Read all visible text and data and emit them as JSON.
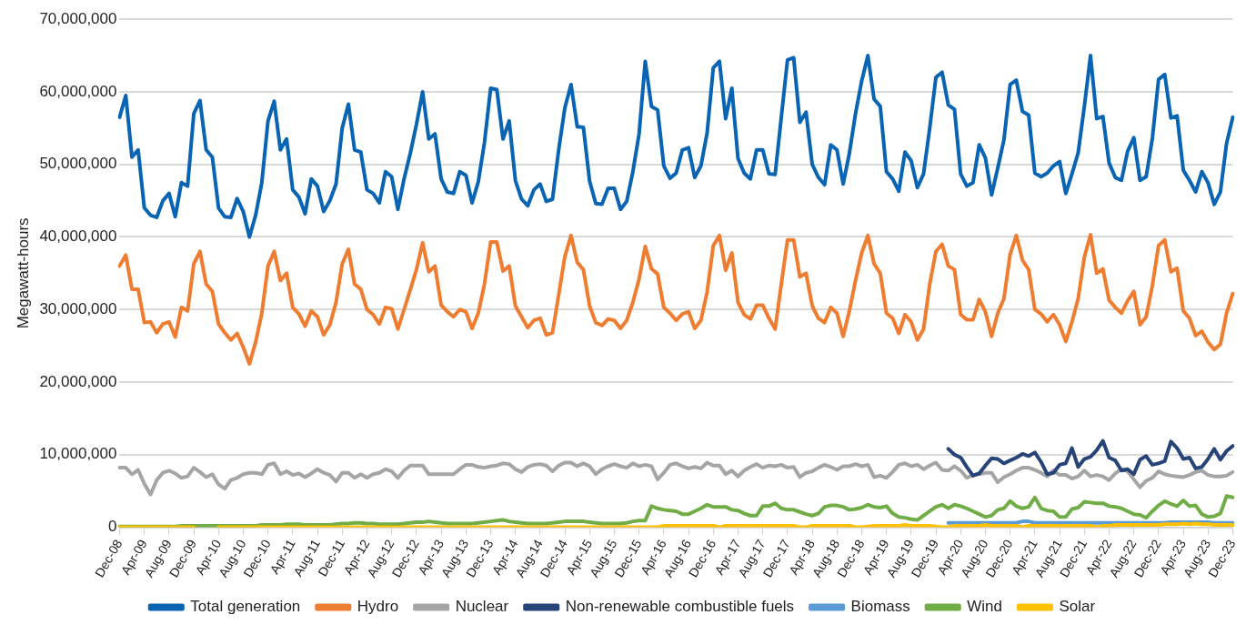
{
  "chart_data": {
    "type": "line",
    "ylabel": "Megawatt-hours",
    "categories": [
      "Dec-08",
      null,
      null,
      null,
      "Apr-09",
      null,
      null,
      null,
      "Aug-09",
      null,
      null,
      null,
      "Dec-09",
      null,
      null,
      null,
      "Apr-10",
      null,
      null,
      null,
      "Aug-10",
      null,
      null,
      null,
      "Dec-10",
      null,
      null,
      null,
      "Apr-11",
      null,
      null,
      null,
      "Aug-11",
      null,
      null,
      null,
      "Dec-11",
      null,
      null,
      null,
      "Apr-12",
      null,
      null,
      null,
      "Aug-12",
      null,
      null,
      null,
      "Dec-12",
      null,
      null,
      null,
      "Apr-13",
      null,
      null,
      null,
      "Aug-13",
      null,
      null,
      null,
      "Dec-13",
      null,
      null,
      null,
      "Apr-14",
      null,
      null,
      null,
      "Aug-14",
      null,
      null,
      null,
      "Dec-14",
      null,
      null,
      null,
      "Apr-15",
      null,
      null,
      null,
      "Aug-15",
      null,
      null,
      null,
      "Dec-15",
      null,
      null,
      null,
      "Apr-16",
      null,
      null,
      null,
      "Aug-16",
      null,
      null,
      null,
      "Dec-16",
      null,
      null,
      null,
      "Apr-17",
      null,
      null,
      null,
      "Aug-17",
      null,
      null,
      null,
      "Dec-17",
      null,
      null,
      null,
      "Apr-18",
      null,
      null,
      null,
      "Aug-18",
      null,
      null,
      null,
      "Dec-18",
      null,
      null,
      null,
      "Apr-19",
      null,
      null,
      null,
      "Aug-19",
      null,
      null,
      null,
      "Dec-19",
      null,
      null,
      null,
      "Apr-20",
      null,
      null,
      null,
      "Aug-20",
      null,
      null,
      null,
      "Dec-20",
      null,
      null,
      null,
      "Apr-21",
      null,
      null,
      null,
      "Aug-21",
      null,
      null,
      null,
      "Dec-21",
      null,
      null,
      null,
      "Apr-22",
      null,
      null,
      null,
      "Aug-22",
      null,
      null,
      null,
      "Dec-22",
      null,
      null,
      null,
      "Apr-23",
      null,
      null,
      null,
      "Aug-23",
      null,
      null,
      null,
      "Dec-23"
    ],
    "series": [
      {
        "name": "Total generation",
        "color": "#0a64b4",
        "values": [
          56500000.0,
          59500000.0,
          51000000.0,
          52000000.0,
          44000000.0,
          43000000.0,
          42700000.0,
          45000000.0,
          46000000.0,
          42800000.0,
          47500000.0,
          47000000.0,
          57000000.0,
          58800000.0,
          52000000.0,
          51000000.0,
          44000000.0,
          42800000.0,
          42700000.0,
          45300000.0,
          43500000.0,
          40000000.0,
          43000000.0,
          47500000.0,
          56000000.0,
          58700000.0,
          52000000.0,
          53500000.0,
          46500000.0,
          45500000.0,
          43200000.0,
          48000000.0,
          47000000.0,
          43500000.0,
          45000000.0,
          47300000.0,
          55000000.0,
          58300000.0,
          52000000.0,
          51700000.0,
          46500000.0,
          46000000.0,
          44700000.0,
          49000000.0,
          48300000.0,
          43800000.0,
          48000000.0,
          51500000.0,
          55500000.0,
          60000000.0,
          53500000.0,
          54200000.0,
          48000000.0,
          46200000.0,
          46000000.0,
          49000000.0,
          48500000.0,
          44700000.0,
          47600000.0,
          53000000.0,
          60500000.0,
          60300000.0,
          53500000.0,
          56000000.0,
          47800000.0,
          45200000.0,
          44300000.0,
          46500000.0,
          47300000.0,
          44900000.0,
          45200000.0,
          52000000.0,
          57800000.0,
          61000000.0,
          55200000.0,
          55100000.0,
          47700000.0,
          44600000.0,
          44500000.0,
          46700000.0,
          46700000.0,
          43800000.0,
          44900000.0,
          49000000.0,
          54200000.0,
          64200000.0,
          58000000.0,
          57500000.0,
          49800000.0,
          48100000.0,
          48800000.0,
          52000000.0,
          52300000.0,
          48200000.0,
          49800000.0,
          54300000.0,
          63300000.0,
          64200000.0,
          56300000.0,
          60500000.0,
          50800000.0,
          48800000.0,
          48000000.0,
          52000000.0,
          52000000.0,
          48700000.0,
          48600000.0,
          56500000.0,
          64400000.0,
          64700000.0,
          55800000.0,
          57200000.0,
          50000000.0,
          48200000.0,
          47200000.0,
          52700000.0,
          52000000.0,
          47300000.0,
          51500000.0,
          57000000.0,
          61500000.0,
          65000000.0,
          59000000.0,
          58000000.0,
          49000000.0,
          48000000.0,
          46300000.0,
          51700000.0,
          50500000.0,
          46800000.0,
          48700000.0,
          55000000.0,
          62000000.0,
          62700000.0,
          58200000.0,
          57600000.0,
          48700000.0,
          47000000.0,
          47500000.0,
          52700000.0,
          50900000.0,
          45800000.0,
          49500000.0,
          53400000.0,
          61000000.0,
          61600000.0,
          57300000.0,
          56800000.0,
          48800000.0,
          48300000.0,
          48800000.0,
          49800000.0,
          50400000.0,
          46000000.0,
          48700000.0,
          51600000.0,
          58000000.0,
          65000000.0,
          56300000.0,
          56600000.0,
          50200000.0,
          48200000.0,
          47800000.0,
          51800000.0,
          53700000.0,
          47800000.0,
          48300000.0,
          53600000.0,
          61700000.0,
          62400000.0,
          56400000.0,
          56700000.0,
          49200000.0,
          47800000.0,
          46200000.0,
          49000000.0,
          47500000.0,
          44500000.0,
          46200000.0,
          52900000.0,
          56500000.0
        ]
      },
      {
        "name": "Hydro",
        "color": "#ef7d31",
        "values": [
          36000000.0,
          37500000.0,
          32800000.0,
          32800000.0,
          28200000.0,
          28300000.0,
          26800000.0,
          28000000.0,
          28300000.0,
          26200000.0,
          30300000.0,
          29800000.0,
          36300000.0,
          38000000.0,
          33500000.0,
          32500000.0,
          28000000.0,
          26800000.0,
          25800000.0,
          26700000.0,
          24800000.0,
          22500000.0,
          25500000.0,
          29500000.0,
          36000000.0,
          38000000.0,
          34000000.0,
          35000000.0,
          30300000.0,
          29400000.0,
          27700000.0,
          29800000.0,
          29000000.0,
          26500000.0,
          27900000.0,
          31000000.0,
          36300000.0,
          38300000.0,
          33500000.0,
          32800000.0,
          30000000.0,
          29300000.0,
          28000000.0,
          30300000.0,
          30100000.0,
          27300000.0,
          30000000.0,
          32700000.0,
          35500000.0,
          39200000.0,
          35200000.0,
          36000000.0,
          30600000.0,
          29700000.0,
          29000000.0,
          30000000.0,
          29700000.0,
          27400000.0,
          29500000.0,
          33500000.0,
          39300000.0,
          39300000.0,
          35300000.0,
          36000000.0,
          30500000.0,
          29000000.0,
          27500000.0,
          28500000.0,
          28800000.0,
          26500000.0,
          26800000.0,
          32000000.0,
          37300000.0,
          40200000.0,
          36500000.0,
          35500000.0,
          30500000.0,
          28200000.0,
          27800000.0,
          28700000.0,
          28500000.0,
          27400000.0,
          28500000.0,
          31000000.0,
          34200000.0,
          38700000.0,
          35600000.0,
          34900000.0,
          30300000.0,
          29500000.0,
          28500000.0,
          29400000.0,
          29700000.0,
          27400000.0,
          28500000.0,
          32400000.0,
          38800000.0,
          40200000.0,
          35400000.0,
          37800000.0,
          31000000.0,
          29300000.0,
          28700000.0,
          30600000.0,
          30600000.0,
          28800000.0,
          27300000.0,
          33500000.0,
          39600000.0,
          39600000.0,
          34500000.0,
          35000000.0,
          30500000.0,
          28800000.0,
          28200000.0,
          30300000.0,
          29500000.0,
          26300000.0,
          29800000.0,
          34000000.0,
          37800000.0,
          40200000.0,
          36300000.0,
          35000000.0,
          29500000.0,
          28800000.0,
          26700000.0,
          29300000.0,
          28300000.0,
          25800000.0,
          27300000.0,
          33500000.0,
          38000000.0,
          39000000.0,
          36000000.0,
          35500000.0,
          29300000.0,
          28600000.0,
          28600000.0,
          31400000.0,
          29700000.0,
          26300000.0,
          29500000.0,
          31500000.0,
          37600000.0,
          40200000.0,
          36800000.0,
          35500000.0,
          30000000.0,
          29400000.0,
          28300000.0,
          29300000.0,
          27900000.0,
          25600000.0,
          28300000.0,
          31500000.0,
          37200000.0,
          40300000.0,
          35000000.0,
          35600000.0,
          31300000.0,
          30300000.0,
          29500000.0,
          31200000.0,
          32500000.0,
          27900000.0,
          29000000.0,
          33300000.0,
          38800000.0,
          39600000.0,
          35200000.0,
          35700000.0,
          29800000.0,
          28800000.0,
          26400000.0,
          27000000.0,
          25500000.0,
          24500000.0,
          25200000.0,
          29500000.0,
          32200000.0
        ]
      },
      {
        "name": "Nuclear",
        "color": "#a5a5a5",
        "values": [
          8200000.0,
          8200000.0,
          7300000.0,
          7900000.0,
          6000000.0,
          4500000.0,
          6500000.0,
          7500000.0,
          7800000.0,
          7400000.0,
          6800000.0,
          7000000.0,
          8200000.0,
          7600000.0,
          6900000.0,
          7300000.0,
          5900000.0,
          5300000.0,
          6500000.0,
          6800000.0,
          7300000.0,
          7500000.0,
          7500000.0,
          7300000.0,
          8600000.0,
          8800000.0,
          7300000.0,
          7700000.0,
          7200000.0,
          7400000.0,
          6900000.0,
          7400000.0,
          8000000.0,
          7500000.0,
          7200000.0,
          6300000.0,
          7500000.0,
          7500000.0,
          6800000.0,
          7300000.0,
          6800000.0,
          7300000.0,
          7500000.0,
          8000000.0,
          7700000.0,
          6800000.0,
          7800000.0,
          8500000.0,
          8500000.0,
          8500000.0,
          7300000.0,
          7300000.0,
          7300000.0,
          7300000.0,
          7300000.0,
          8000000.0,
          8600000.0,
          8600000.0,
          8300000.0,
          8200000.0,
          8400000.0,
          8500000.0,
          8800000.0,
          8700000.0,
          8000000.0,
          7600000.0,
          8300000.0,
          8600000.0,
          8700000.0,
          8500000.0,
          7700000.0,
          8500000.0,
          8900000.0,
          8900000.0,
          8400000.0,
          8800000.0,
          8400000.0,
          7300000.0,
          8000000.0,
          8400000.0,
          8700000.0,
          8400000.0,
          8200000.0,
          8800000.0,
          8400000.0,
          8600000.0,
          8400000.0,
          6600000.0,
          7500000.0,
          8600000.0,
          8800000.0,
          8400000.0,
          8100000.0,
          8300000.0,
          8100000.0,
          8900000.0,
          8500000.0,
          8500000.0,
          7300000.0,
          7800000.0,
          7000000.0,
          7800000.0,
          8300000.0,
          8700000.0,
          8200000.0,
          8500000.0,
          8400000.0,
          8600000.0,
          8200000.0,
          8300000.0,
          6900000.0,
          7500000.0,
          7700000.0,
          8200000.0,
          8600000.0,
          8300000.0,
          7900000.0,
          8400000.0,
          8400000.0,
          8700000.0,
          8400000.0,
          8600000.0,
          6900000.0,
          7100000.0,
          6800000.0,
          7600000.0,
          8600000.0,
          8800000.0,
          8400000.0,
          8600000.0,
          8000000.0,
          8500000.0,
          8900000.0,
          7900000.0,
          7800000.0,
          8400000.0,
          7800000.0,
          6800000.0,
          7200000.0,
          7300000.0,
          7500000.0,
          7500000.0,
          6200000.0,
          6900000.0,
          7300000.0,
          7800000.0,
          8200000.0,
          8200000.0,
          7900000.0,
          7500000.0,
          7000000.0,
          7800000.0,
          7200000.0,
          7200000.0,
          6700000.0,
          7000000.0,
          7800000.0,
          7000000.0,
          7200000.0,
          7000000.0,
          6500000.0,
          7400000.0,
          8000000.0,
          7700000.0,
          6600000.0,
          5500000.0,
          6400000.0,
          6800000.0,
          7700000.0,
          7300000.0,
          7100000.0,
          7000000.0,
          6900000.0,
          7200000.0,
          7600000.0,
          7800000.0,
          7200000.0,
          7000000.0,
          7000000.0,
          7100000.0,
          7600000.0
        ]
      },
      {
        "name": "Non-renewable combustible fuels",
        "color": "#264478",
        "values": [
          null,
          null,
          null,
          null,
          null,
          null,
          null,
          null,
          null,
          null,
          null,
          null,
          null,
          null,
          null,
          null,
          null,
          null,
          null,
          null,
          null,
          null,
          null,
          null,
          null,
          null,
          null,
          null,
          null,
          null,
          null,
          null,
          null,
          null,
          null,
          null,
          null,
          null,
          null,
          null,
          null,
          null,
          null,
          null,
          null,
          null,
          null,
          null,
          null,
          null,
          null,
          null,
          null,
          null,
          null,
          null,
          null,
          null,
          null,
          null,
          null,
          null,
          null,
          null,
          null,
          null,
          null,
          null,
          null,
          null,
          null,
          null,
          null,
          null,
          null,
          null,
          null,
          null,
          null,
          null,
          null,
          null,
          null,
          null,
          null,
          null,
          null,
          null,
          null,
          null,
          null,
          null,
          null,
          null,
          null,
          null,
          null,
          null,
          null,
          null,
          null,
          null,
          null,
          null,
          null,
          null,
          null,
          null,
          null,
          null,
          null,
          null,
          null,
          null,
          null,
          null,
          null,
          null,
          null,
          null,
          null,
          null,
          null,
          null,
          null,
          null,
          null,
          null,
          null,
          null,
          null,
          null,
          null,
          null,
          10800000.0,
          10000000.0,
          9600000.0,
          8300000.0,
          7100000.0,
          7400000.0,
          8500000.0,
          9500000.0,
          9400000.0,
          8800000.0,
          9200000.0,
          9600000.0,
          10100000.0,
          9800000.0,
          10300000.0,
          9000000.0,
          7300000.0,
          7500000.0,
          8600000.0,
          8800000.0,
          10900000.0,
          8300000.0,
          9400000.0,
          9700000.0,
          10600000.0,
          11900000.0,
          9600000.0,
          9200000.0,
          7800000.0,
          8000000.0,
          7300000.0,
          9300000.0,
          9800000.0,
          8600000.0,
          8800000.0,
          9100000.0,
          11800000.0,
          10900000.0,
          9400000.0,
          9600000.0,
          8100000.0,
          8300000.0,
          9400000.0,
          10800000.0,
          9300000.0,
          10500000.0,
          11200000.0
        ]
      },
      {
        "name": "Biomass",
        "color": "#5b9bd5",
        "values": [
          null,
          null,
          null,
          null,
          null,
          null,
          null,
          null,
          null,
          null,
          null,
          null,
          null,
          null,
          null,
          null,
          null,
          null,
          null,
          null,
          null,
          null,
          null,
          null,
          null,
          null,
          null,
          null,
          null,
          null,
          null,
          null,
          null,
          null,
          null,
          null,
          null,
          null,
          null,
          null,
          null,
          null,
          null,
          null,
          null,
          null,
          null,
          null,
          null,
          null,
          null,
          null,
          null,
          null,
          null,
          null,
          null,
          null,
          null,
          null,
          null,
          null,
          null,
          null,
          null,
          null,
          null,
          null,
          null,
          null,
          null,
          null,
          null,
          null,
          null,
          null,
          null,
          null,
          null,
          null,
          null,
          null,
          null,
          null,
          null,
          null,
          null,
          null,
          null,
          null,
          null,
          null,
          null,
          null,
          null,
          null,
          null,
          null,
          null,
          null,
          null,
          null,
          null,
          null,
          null,
          null,
          null,
          null,
          null,
          null,
          null,
          null,
          null,
          null,
          null,
          null,
          null,
          null,
          null,
          null,
          null,
          null,
          null,
          null,
          null,
          null,
          null,
          null,
          null,
          null,
          null,
          null,
          null,
          null,
          600000.0,
          600000.0,
          600000.0,
          600000.0,
          600000.0,
          600000.0,
          600000.0,
          600000.0,
          600000.0,
          600000.0,
          600000.0,
          600000.0,
          800000.0,
          800000.0,
          600000.0,
          600000.0,
          600000.0,
          600000.0,
          600000.0,
          600000.0,
          600000.0,
          600000.0,
          600000.0,
          600000.0,
          600000.0,
          600000.0,
          600000.0,
          600000.0,
          600000.0,
          600000.0,
          600000.0,
          600000.0,
          600000.0,
          600000.0,
          600000.0,
          600000.0,
          700000.0,
          700000.0,
          700000.0,
          700000.0,
          700000.0,
          700000.0,
          700000.0,
          600000.0,
          600000.0,
          600000.0,
          600000.0
        ]
      },
      {
        "name": "Wind",
        "color": "#70ad47",
        "values": [
          100000.0,
          100000.0,
          100000.0,
          100000.0,
          100000.0,
          100000.0,
          100000.0,
          100000.0,
          100000.0,
          100000.0,
          200000.0,
          200000.0,
          200000.0,
          200000.0,
          200000.0,
          200000.0,
          200000.0,
          200000.0,
          200000.0,
          200000.0,
          200000.0,
          200000.0,
          200000.0,
          300000.0,
          300000.0,
          300000.0,
          300000.0,
          400000.0,
          400000.0,
          400000.0,
          300000.0,
          300000.0,
          300000.0,
          300000.0,
          300000.0,
          400000.0,
          500000.0,
          500000.0,
          600000.0,
          600000.0,
          500000.0,
          500000.0,
          400000.0,
          400000.0,
          400000.0,
          400000.0,
          500000.0,
          600000.0,
          700000.0,
          700000.0,
          800000.0,
          700000.0,
          600000.0,
          500000.0,
          500000.0,
          500000.0,
          500000.0,
          500000.0,
          600000.0,
          700000.0,
          800000.0,
          900000.0,
          1000000.0,
          800000.0,
          700000.0,
          600000.0,
          500000.0,
          500000.0,
          500000.0,
          500000.0,
          600000.0,
          700000.0,
          800000.0,
          800000.0,
          800000.0,
          800000.0,
          700000.0,
          600000.0,
          500000.0,
          500000.0,
          500000.0,
          500000.0,
          600000.0,
          800000.0,
          900000.0,
          900000.0,
          2900000.0,
          2600000.0,
          2400000.0,
          2300000.0,
          2200000.0,
          1800000.0,
          1800000.0,
          2200000.0,
          2600000.0,
          3100000.0,
          2800000.0,
          2800000.0,
          2800000.0,
          2400000.0,
          2300000.0,
          1900000.0,
          1600000.0,
          1600000.0,
          2900000.0,
          2900000.0,
          3300000.0,
          2600000.0,
          2400000.0,
          2400000.0,
          2100000.0,
          1800000.0,
          1600000.0,
          1900000.0,
          2800000.0,
          3000000.0,
          3000000.0,
          2800000.0,
          2400000.0,
          2500000.0,
          2700000.0,
          3100000.0,
          2800000.0,
          2700000.0,
          2900000.0,
          1900000.0,
          1400000.0,
          1300000.0,
          1100000.0,
          1000000.0,
          1600000.0,
          2200000.0,
          2800000.0,
          3100000.0,
          2600000.0,
          3100000.0,
          2900000.0,
          2600000.0,
          2200000.0,
          1800000.0,
          1400000.0,
          1600000.0,
          2400000.0,
          2600000.0,
          3600000.0,
          2900000.0,
          2600000.0,
          2800000.0,
          4100000.0,
          2600000.0,
          2300000.0,
          2200000.0,
          1400000.0,
          1400000.0,
          2500000.0,
          2700000.0,
          3500000.0,
          3400000.0,
          3300000.0,
          3300000.0,
          2900000.0,
          2800000.0,
          2600000.0,
          2200000.0,
          1800000.0,
          1700000.0,
          1300000.0,
          2200000.0,
          3000000.0,
          3600000.0,
          3200000.0,
          2900000.0,
          3700000.0,
          2900000.0,
          3000000.0,
          1800000.0,
          1400000.0,
          1500000.0,
          1900000.0,
          4300000.0,
          4100000.0
        ]
      },
      {
        "name": "Solar",
        "color": "#ffc000",
        "values": [
          0,
          0,
          0,
          0,
          0,
          0,
          0,
          0,
          0,
          0,
          0,
          0,
          0,
          null,
          null,
          null,
          0,
          0,
          0,
          0,
          0,
          0,
          0,
          0,
          0,
          0,
          0,
          0,
          0,
          0,
          0,
          0,
          0,
          0,
          0,
          0,
          0,
          0,
          0,
          0,
          0,
          0,
          0,
          0,
          0,
          0,
          0,
          0,
          0,
          0,
          0,
          0,
          0,
          0,
          0,
          0,
          0,
          0,
          0,
          0,
          0,
          0,
          0,
          0,
          0,
          0,
          0,
          0,
          0,
          0,
          0,
          0,
          0,
          0,
          0,
          0,
          0,
          0,
          0,
          0,
          0,
          0,
          0,
          0,
          0,
          0,
          0,
          0,
          200000.0,
          200000.0,
          200000.0,
          200000.0,
          200000.0,
          200000.0,
          200000.0,
          200000.0,
          200000.0,
          0,
          200000.0,
          200000.0,
          200000.0,
          200000.0,
          200000.0,
          200000.0,
          200000.0,
          200000.0,
          200000.0,
          200000.0,
          200000.0,
          200000.0,
          0,
          0,
          200000.0,
          200000.0,
          200000.0,
          200000.0,
          200000.0,
          200000.0,
          200000.0,
          0,
          0,
          100000.0,
          200000.0,
          200000.0,
          200000.0,
          200000.0,
          200000.0,
          300000.0,
          200000.0,
          200000.0,
          200000.0,
          200000.0,
          100000.0,
          0,
          0,
          200000.0,
          200000.0,
          200000.0,
          200000.0,
          200000.0,
          300000.0,
          200000.0,
          200000.0,
          200000.0,
          200000.0,
          200000.0,
          0,
          200000.0,
          200000.0,
          200000.0,
          200000.0,
          200000.0,
          200000.0,
          200000.0,
          200000.0,
          200000.0,
          200000.0,
          200000.0,
          0,
          200000.0,
          200000.0,
          300000.0,
          300000.0,
          300000.0,
          300000.0,
          300000.0,
          300000.0,
          300000.0,
          300000.0,
          400000.0,
          400000.0,
          400000.0,
          500000.0,
          400000.0,
          500000.0,
          400000.0,
          400000.0,
          300000.0,
          300000.0,
          300000.0,
          300000.0
        ]
      }
    ],
    "ylim": [
      0,
      70000000
    ],
    "yticks": [
      0,
      {
        "value": 10000000,
        "label": "10,000,000"
      },
      {
        "value": 20000000,
        "label": "20,000,000"
      },
      {
        "value": 30000000,
        "label": "30,000,000"
      },
      {
        "value": 40000000,
        "label": "40,000,000"
      },
      {
        "value": 50000000,
        "label": "50,000,000"
      },
      {
        "value": 60000000,
        "label": "60,000,000"
      },
      {
        "value": 70000000,
        "label": "70,000,000"
      }
    ],
    "grid": "y",
    "legend": "bottom",
    "marker": "none",
    "line_style": "solid"
  }
}
